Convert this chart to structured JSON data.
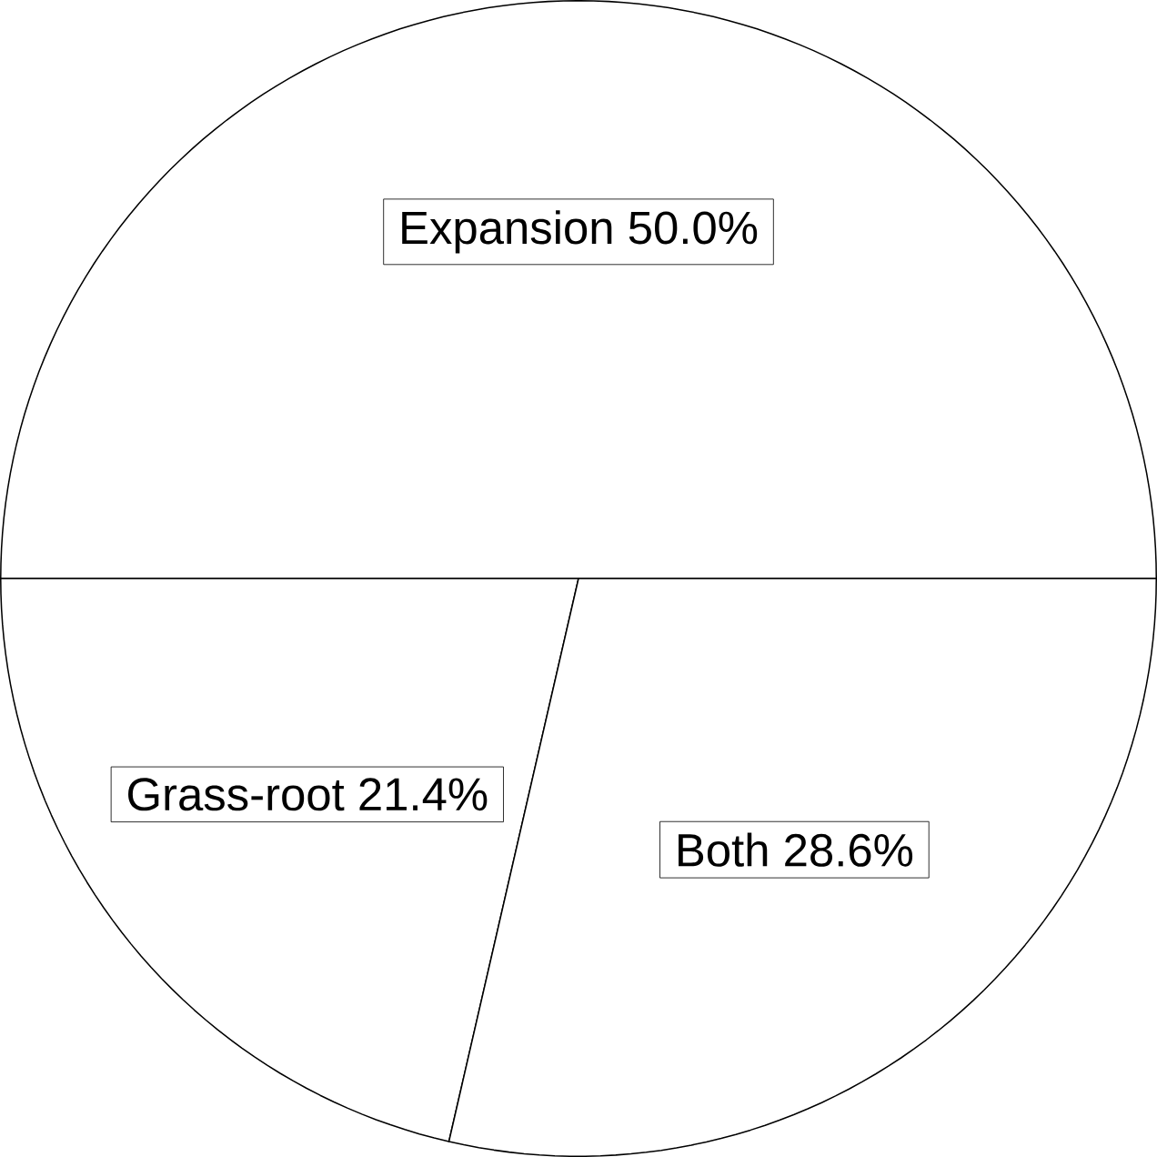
{
  "chart_data": {
    "type": "pie",
    "categories": [
      "Expansion",
      "Grass-root",
      "Both"
    ],
    "values": [
      50.0,
      21.4,
      28.6
    ],
    "value_labels": [
      "50.0%",
      "21.4%",
      "28.6%"
    ],
    "colors": [
      "#ffffff",
      "#ffffff",
      "#ffffff"
    ]
  }
}
